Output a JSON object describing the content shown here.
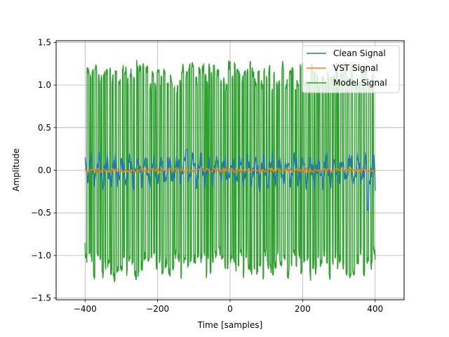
{
  "chart_data": {
    "type": "line",
    "title": "",
    "xlabel": "Time [samples]",
    "ylabel": "Amplitude",
    "xlim": [
      -480,
      480
    ],
    "ylim": [
      -1.52,
      1.52
    ],
    "xticks": [
      -400,
      -200,
      0,
      200,
      400
    ],
    "yticks": [
      -1.5,
      -1.0,
      -0.5,
      0.0,
      0.5,
      1.0,
      1.5
    ],
    "xtick_labels": [
      "−400",
      "−200",
      "0",
      "200",
      "400"
    ],
    "ytick_labels": [
      "−1.5",
      "−1.0",
      "−0.5",
      "0.0",
      "0.5",
      "1.0",
      "1.5"
    ],
    "grid": true,
    "legend_position": "top-right",
    "x_range": [
      -400,
      400
    ],
    "series": [
      {
        "name": "Clean Signal",
        "color": "#1f77b4",
        "description_points": [
          [
            -400,
            0.15
          ],
          [
            -390,
            -0.2
          ],
          [
            -120,
            0.24
          ],
          [
            380,
            -0.47
          ],
          [
            400,
            -0.24
          ]
        ],
        "amplitude_range": [
          -0.47,
          0.24
        ]
      },
      {
        "name": "VST Signal",
        "color": "#ff7f0e",
        "amplitude_range": [
          -0.03,
          0.03
        ]
      },
      {
        "name": "Model Signal",
        "color": "#2ca02c",
        "amplitude_range": [
          -1.27,
          1.27
        ],
        "start_value": -0.85,
        "end_value": -1.05
      }
    ]
  }
}
